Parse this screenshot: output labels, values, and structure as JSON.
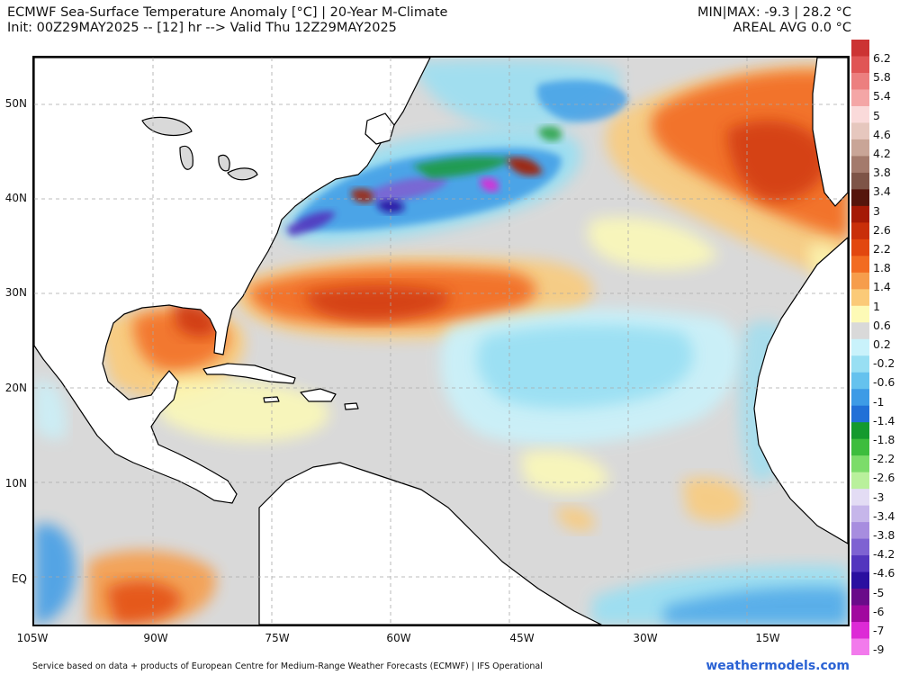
{
  "header": {
    "title": "ECMWF Sea-Surface Temperature Anomaly [°C] | 20-Year M-Climate",
    "init": "Init: 00Z29MAY2025 -- [12] hr --> Valid Thu 12Z29MAY2025",
    "minmax": "MIN|MAX: -9.3 | 28.2 °C",
    "areal": "AREAL AVG 0.0 °C"
  },
  "map": {
    "lon_range": [
      -105,
      -2
    ],
    "lat_range": [
      -5,
      55
    ],
    "lat_labels": [
      {
        "label": "50N",
        "lat": 50
      },
      {
        "label": "40N",
        "lat": 40
      },
      {
        "label": "30N",
        "lat": 30
      },
      {
        "label": "20N",
        "lat": 20
      },
      {
        "label": "10N",
        "lat": 10
      },
      {
        "label": "EQ",
        "lat": 0
      }
    ],
    "lon_labels": [
      {
        "label": "105W",
        "lon": -105
      },
      {
        "label": "90W",
        "lon": -90
      },
      {
        "label": "75W",
        "lon": -75
      },
      {
        "label": "60W",
        "lon": -60
      },
      {
        "label": "45W",
        "lon": -45
      },
      {
        "label": "30W",
        "lon": -30
      },
      {
        "label": "15W",
        "lon": -15
      }
    ],
    "colors": {
      "land": "#ffffff",
      "ocean_neutral": "#d9d9d9",
      "coast": "#000000",
      "grid": "#a9a9a9"
    }
  },
  "colorbar": {
    "labels": [
      "6.2",
      "5.8",
      "5.4",
      "5",
      "4.6",
      "4.2",
      "3.8",
      "3.4",
      "3",
      "2.6",
      "2.2",
      "1.8",
      "1.4",
      "1",
      "0.6",
      "0.2",
      "-0.2",
      "-0.6",
      "-1",
      "-1.4",
      "-1.8",
      "-2.2",
      "-2.6",
      "-3",
      "-3.4",
      "-3.8",
      "-4.2",
      "-4.6",
      "-5",
      "-6",
      "-7",
      "-9"
    ],
    "colors": [
      "#cc3333",
      "#e05555",
      "#ec7f7f",
      "#f4a6a6",
      "#fadada",
      "#e6c7be",
      "#c9a597",
      "#a47a6c",
      "#7e5447",
      "#55150c",
      "#a51a06",
      "#c92f0a",
      "#e2470f",
      "#f26b21",
      "#f69d4c",
      "#fbca78",
      "#fdfab6",
      "#d9d9d9",
      "#c9f2fb",
      "#98dff3",
      "#65c2ee",
      "#3d9be6",
      "#2170d7",
      "#149a2e",
      "#3dbd3d",
      "#7cdc6a",
      "#b9f09c",
      "#e3dcf4",
      "#c6b6ea",
      "#a78ddf",
      "#7e62d2",
      "#5335be",
      "#2a0fa0",
      "#6a0b8a",
      "#a1089f",
      "#dd2ad6",
      "#f27aec"
    ]
  },
  "footer": "Service based on data + products of European Centre for Medium-Range Weather Forecasts (ECMWF) | IFS Operational",
  "brand": "weathermodels.com"
}
